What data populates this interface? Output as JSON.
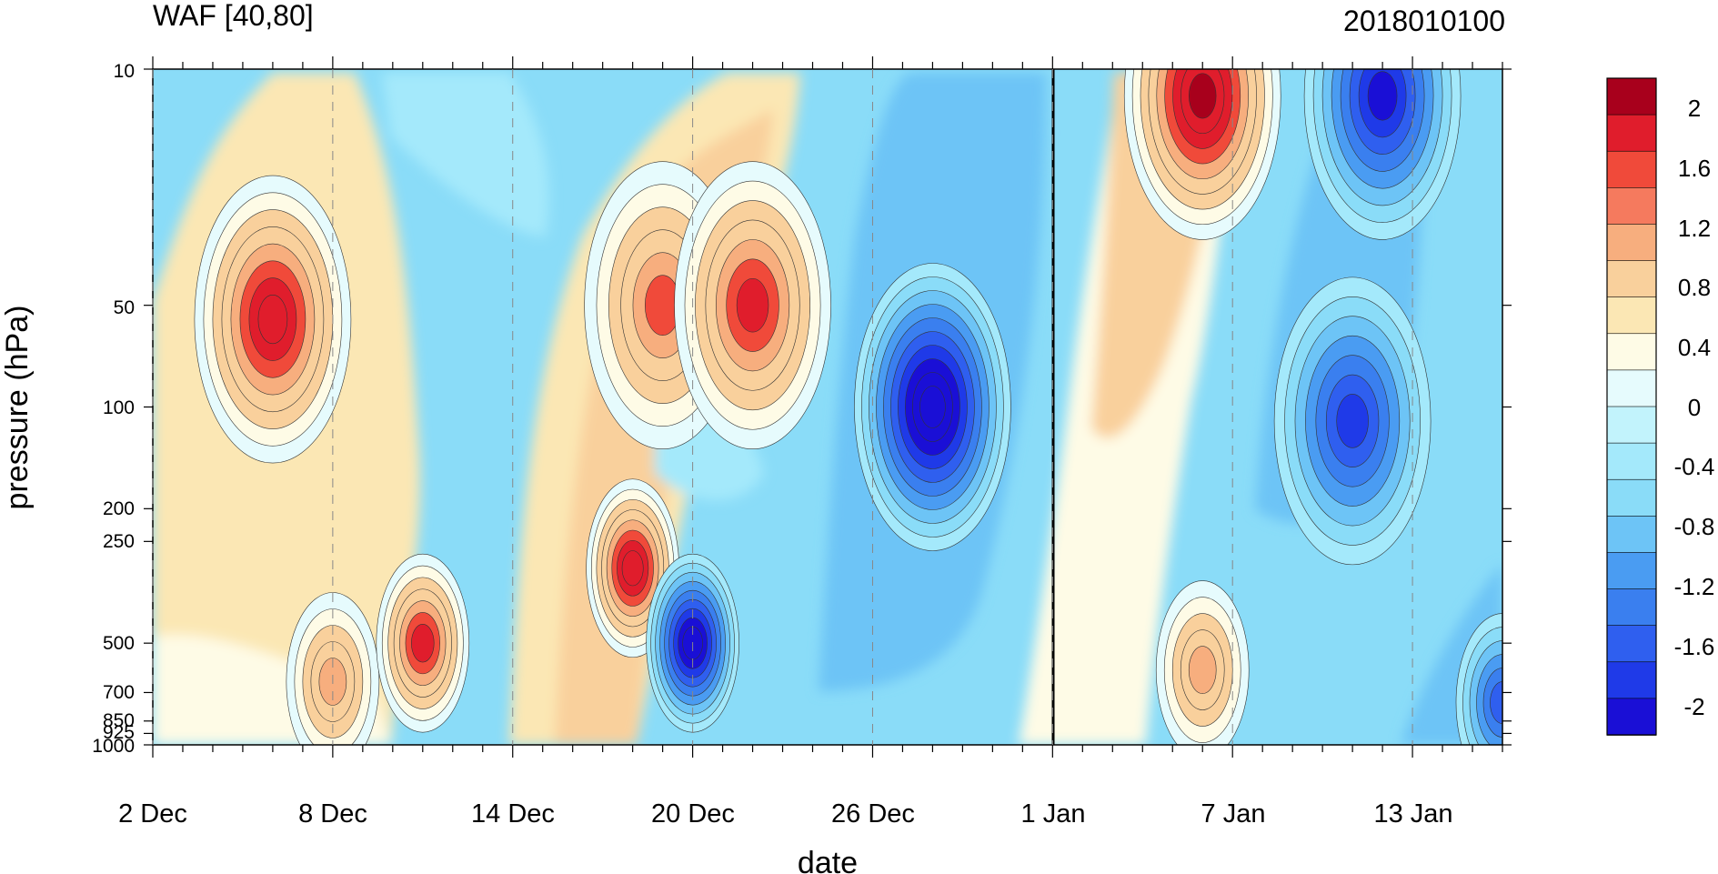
{
  "header": {
    "title": "WAF [40,80]",
    "timestamp": "2018010100"
  },
  "colors": {
    "palette": [
      "#1a0fd6",
      "#1f3ae8",
      "#2f5fef",
      "#3a7fef",
      "#4a9cf2",
      "#6dc4f6",
      "#8adcf8",
      "#a4e9fb",
      "#c2f3fc",
      "#e6fbfd",
      "#fefbe6",
      "#fbe7b4",
      "#f9d09c",
      "#f7ae7e",
      "#f57a5e",
      "#f04a3a",
      "#e01d2c",
      "#a8001c"
    ]
  },
  "chart_data": {
    "type": "heatmap",
    "title": "WAF [40,80]",
    "xlabel": "date",
    "ylabel": "pressure (hPa)",
    "x_ticks": [
      "2 Dec",
      "8 Dec",
      "14 Dec",
      "20 Dec",
      "26 Dec",
      "1 Jan",
      "7 Jan",
      "13 Jan"
    ],
    "y_ticks": [
      "10",
      "50",
      "100",
      "200",
      "250",
      "500",
      "700",
      "850",
      "925",
      "1000"
    ],
    "y_scale": "log",
    "ylim": [
      1000,
      10
    ],
    "x_range": [
      "2 Dec 2017",
      "16 Jan 2018"
    ],
    "marked_date": "1 Jan",
    "colorbar_labels": [
      "2",
      "1.6",
      "1.2",
      "0.8",
      "0.4",
      "0",
      "-0.4",
      "-0.8",
      "-1.2",
      "-1.6",
      "-2"
    ],
    "color_levels": [
      -2.2,
      -2.0,
      -1.8,
      -1.6,
      -1.4,
      -1.2,
      -1.0,
      -0.8,
      -0.6,
      -0.4,
      -0.2,
      0,
      0.2,
      0.4,
      0.6,
      0.8,
      1.0,
      1.2,
      1.4,
      1.6,
      1.8,
      2.0,
      2.2
    ],
    "features": [
      {
        "date": "6 Dec",
        "pressure": 55,
        "value": 1.5
      },
      {
        "date": "8 Dec",
        "pressure": 650,
        "value": 1.0
      },
      {
        "date": "11 Dec",
        "pressure": 500,
        "value": 1.3
      },
      {
        "date": "18 Dec",
        "pressure": 300,
        "value": 1.6
      },
      {
        "date": "19 Dec",
        "pressure": 50,
        "value": 1.2
      },
      {
        "date": "22 Dec",
        "pressure": 50,
        "value": 1.3
      },
      {
        "date": "20 Dec",
        "pressure": 500,
        "value": -1.8
      },
      {
        "date": "28 Dec",
        "pressure": 100,
        "value": -2.0
      },
      {
        "date": "5 Jan",
        "pressure": 12,
        "value": 1.7
      },
      {
        "date": "5 Jan",
        "pressure": 600,
        "value": 1.0
      },
      {
        "date": "11 Jan",
        "pressure": 12,
        "value": -1.5
      },
      {
        "date": "10 Jan",
        "pressure": 110,
        "value": -1.3
      },
      {
        "date": "15 Jan",
        "pressure": 750,
        "value": -1.2
      }
    ]
  }
}
